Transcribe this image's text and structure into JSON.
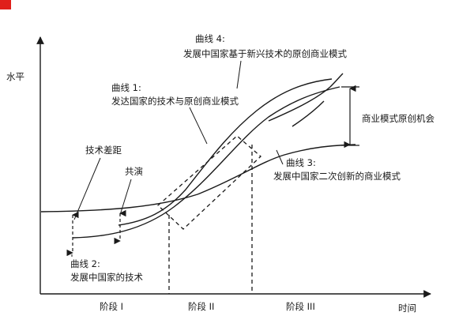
{
  "diagram": {
    "y_axis_label": "水平",
    "x_axis_label": "时间",
    "stages": [
      "阶段 I",
      "阶段 II",
      "阶段 III"
    ],
    "curve1": {
      "line1": "曲线 1:",
      "line2": "发达国家的技术与原创商业模式"
    },
    "curve2": {
      "line1": "曲线 2:",
      "line2": "发展中国家的技术"
    },
    "curve3": {
      "line1": "曲线 3:",
      "line2": "发展中国家二次创新的商业模式"
    },
    "curve4": {
      "line1": "曲线 4:",
      "line2": "发展中国家基于新兴技术的原创商业模式"
    },
    "tech_gap_label": "技术差距",
    "coevolution_label": "共演",
    "opportunity_label": "商业模式原创机会",
    "colors": {
      "corner": "#e0201b",
      "ink": "#1a1a1a"
    }
  }
}
